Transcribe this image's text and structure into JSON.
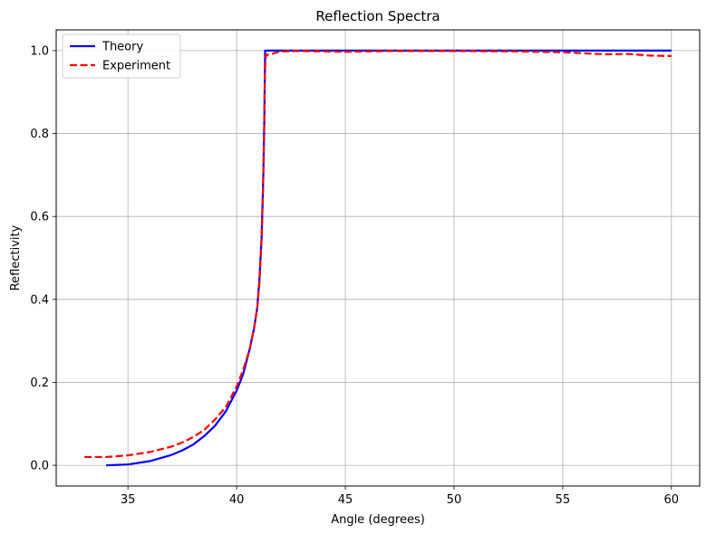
{
  "chart_data": {
    "type": "line",
    "title": "Reflection Spectra",
    "xlabel": "Angle (degrees)",
    "ylabel": "Reflectivity",
    "xlim": [
      31.7,
      61.3
    ],
    "ylim": [
      -0.05,
      1.05
    ],
    "xticks": [
      35,
      40,
      45,
      50,
      55,
      60
    ],
    "xtick_labels": [
      "35",
      "40",
      "45",
      "50",
      "55",
      "60"
    ],
    "yticks": [
      0.0,
      0.2,
      0.4,
      0.6,
      0.8,
      1.0
    ],
    "ytick_labels": [
      "0.0",
      "0.2",
      "0.4",
      "0.6",
      "0.8",
      "1.0"
    ],
    "grid": true,
    "legend_position": "top-left",
    "series": [
      {
        "name": "Theory",
        "color": "#0000ff",
        "style": "solid",
        "x": [
          34.0,
          35.0,
          36.0,
          37.0,
          37.5,
          38.0,
          38.5,
          39.0,
          39.5,
          40.0,
          40.3,
          40.6,
          40.8,
          40.95,
          41.05,
          41.15,
          41.22,
          41.27,
          41.3,
          41.31,
          41.35,
          45.0,
          50.0,
          55.0,
          60.0
        ],
        "y": [
          0.0,
          0.002,
          0.01,
          0.025,
          0.036,
          0.05,
          0.07,
          0.095,
          0.13,
          0.18,
          0.22,
          0.28,
          0.33,
          0.38,
          0.45,
          0.55,
          0.68,
          0.82,
          0.95,
          1.0,
          1.0,
          1.0,
          1.0,
          1.0,
          1.0
        ]
      },
      {
        "name": "Experiment",
        "color": "#ff0000",
        "style": "dashed",
        "x": [
          33.0,
          34.0,
          35.0,
          36.0,
          37.0,
          37.5,
          38.0,
          38.5,
          39.0,
          39.5,
          40.0,
          40.3,
          40.6,
          40.8,
          40.95,
          41.05,
          41.15,
          41.22,
          41.27,
          41.3,
          41.35,
          41.5,
          42.0,
          43.0,
          45.0,
          47.0,
          50.0,
          53.0,
          55.0,
          57.0,
          58.0,
          59.0,
          60.0
        ],
        "y": [
          0.02,
          0.02,
          0.024,
          0.032,
          0.045,
          0.055,
          0.068,
          0.085,
          0.11,
          0.14,
          0.19,
          0.23,
          0.28,
          0.33,
          0.38,
          0.44,
          0.55,
          0.68,
          0.82,
          0.95,
          0.99,
          0.99,
          0.998,
          0.999,
          0.997,
          0.999,
          0.999,
          0.998,
          0.996,
          0.991,
          0.992,
          0.988,
          0.987
        ]
      }
    ]
  }
}
